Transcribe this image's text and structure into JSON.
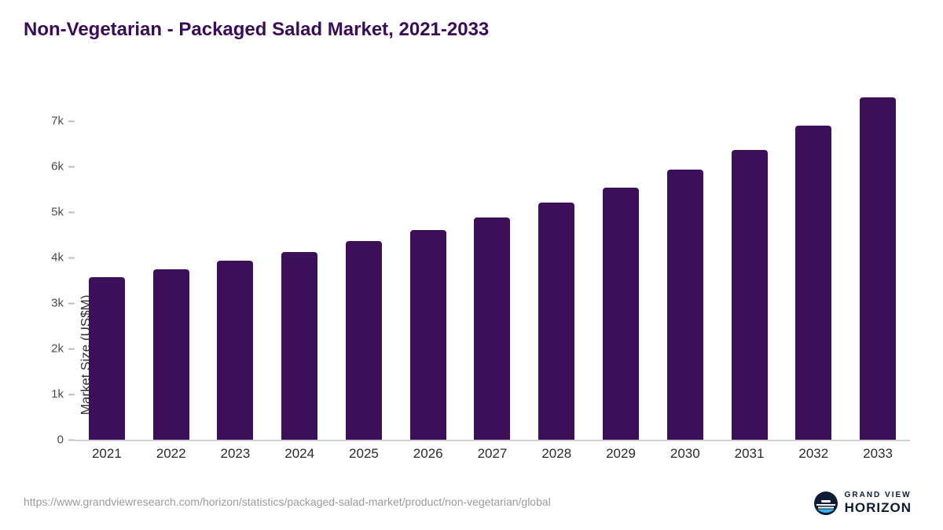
{
  "title": "Non-Vegetarian - Packaged Salad Market, 2021-2033",
  "chart_data": {
    "type": "bar",
    "title": "Non-Vegetarian - Packaged Salad Market, 2021-2033",
    "categories": [
      "2021",
      "2022",
      "2023",
      "2024",
      "2025",
      "2026",
      "2027",
      "2028",
      "2029",
      "2030",
      "2031",
      "2032",
      "2033"
    ],
    "values": [
      3570,
      3740,
      3930,
      4120,
      4360,
      4610,
      4890,
      5210,
      5540,
      5940,
      6370,
      6900,
      7520
    ],
    "xlabel": "",
    "ylabel": "Market Size (US$M)",
    "yticks": [
      0,
      1000,
      2000,
      3000,
      4000,
      5000,
      6000,
      7000
    ],
    "ytick_labels": [
      "0",
      "1k",
      "2k",
      "3k",
      "4k",
      "5k",
      "6k",
      "7k"
    ],
    "ylim": [
      0,
      7800
    ],
    "bar_color": "#3c0f59",
    "grid": false,
    "legend": false
  },
  "footer": {
    "source_url": "https://www.grandviewresearch.com/horizon/statistics/packaged-salad-market/product/non-vegetarian/global",
    "brand_top": "GRAND VIEW",
    "brand_bottom": "HORIZON"
  },
  "icons": {
    "brand_logo": "horizon-globe-icon"
  },
  "colors": {
    "title": "#3a0b57",
    "bar": "#3c0f59",
    "axis_line": "#cfcfcf",
    "brand_navy": "#0d1b35",
    "brand_teal": "#35b6e9"
  }
}
